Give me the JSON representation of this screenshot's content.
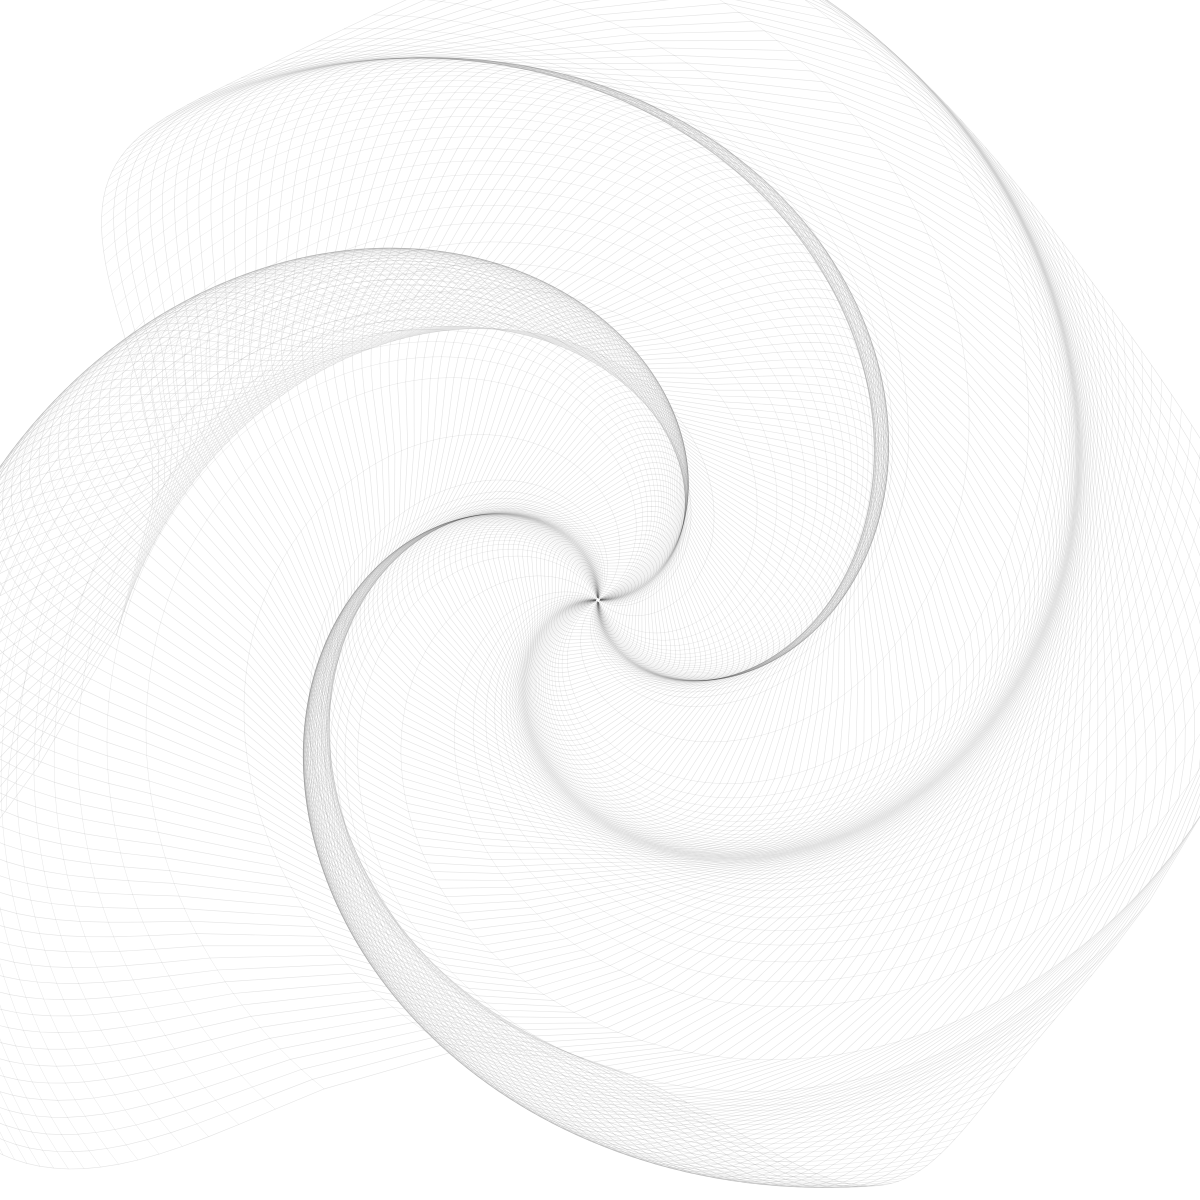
{
  "artwork": {
    "name": "spiral-mesh-generative-art",
    "colors": {
      "background": "#ffffff",
      "line": "#000000"
    },
    "pattern": {
      "layers": 150,
      "points_per_side": 44,
      "twist_turns": 0.62,
      "wave_amplitude_ratio": 0.19,
      "rounding_exponent": 4.5,
      "line_opacity": 0.11
    }
  }
}
